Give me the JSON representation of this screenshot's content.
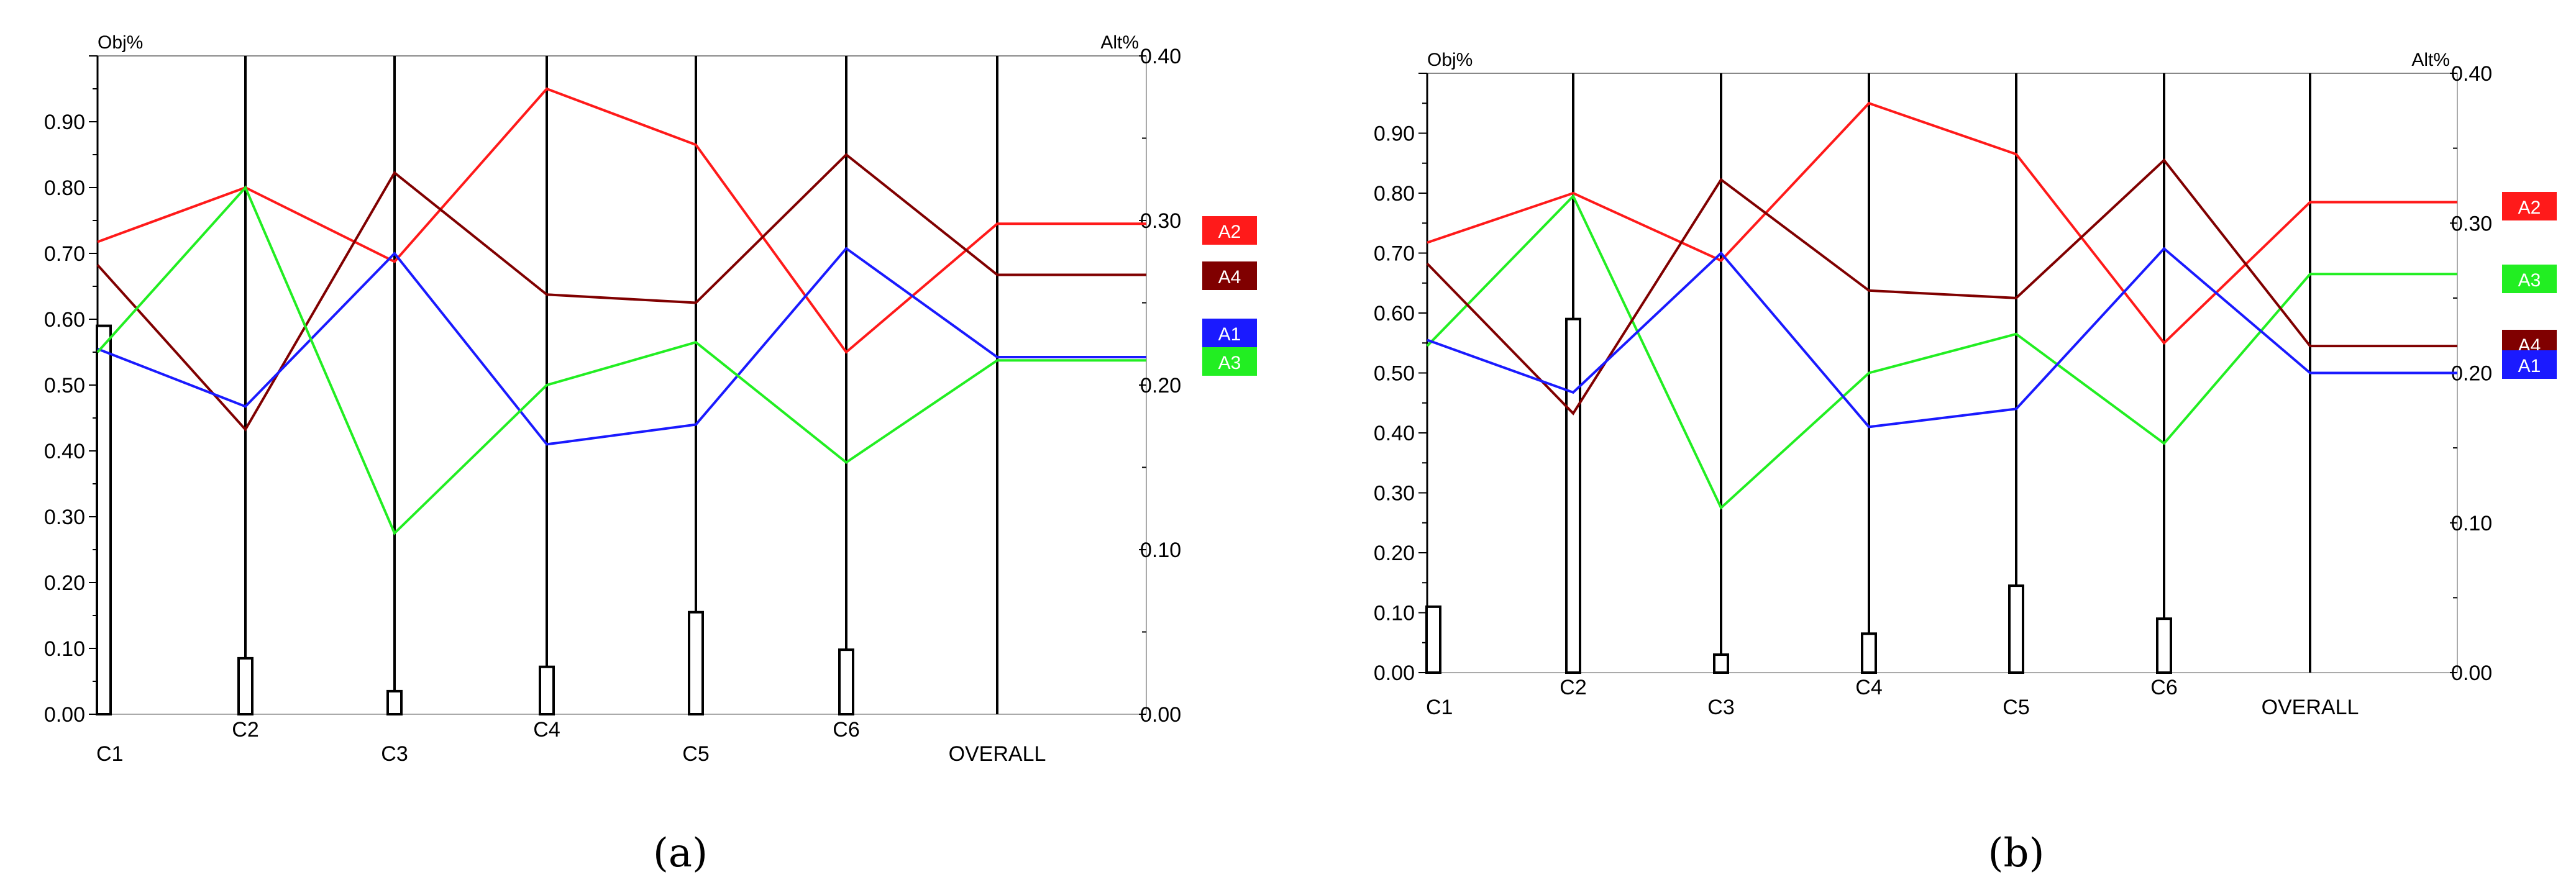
{
  "chart_data": [
    {
      "type": "line",
      "panel_label": "(a)",
      "left_axis_title": "Obj%",
      "right_axis_title": "Alt%",
      "categories": [
        "C1",
        "C2",
        "C3",
        "C4",
        "C5",
        "C6",
        "OVERALL"
      ],
      "left_ylim": [
        0,
        1.0
      ],
      "left_ticks": [
        "0.00",
        "0.10",
        "0.20",
        "0.30",
        "0.40",
        "0.50",
        "0.60",
        "0.70",
        "0.80",
        "0.90"
      ],
      "right_ylim": [
        0,
        0.4
      ],
      "right_ticks": [
        "0.00",
        "0.10",
        "0.20",
        "0.30",
        "0.40"
      ],
      "weights": [
        0.59,
        0.085,
        0.035,
        0.072,
        0.155,
        0.098
      ],
      "series": [
        {
          "name": "A2",
          "color": "#ff1a1a",
          "values": [
            0.287,
            0.32,
            0.275,
            0.38,
            0.346,
            0.22,
            0.298
          ]
        },
        {
          "name": "A4",
          "color": "#800000",
          "values": [
            0.273,
            0.173,
            0.329,
            0.255,
            0.25,
            0.34,
            0.267
          ]
        },
        {
          "name": "A1",
          "color": "#1a1aff",
          "values": [
            0.222,
            0.187,
            0.28,
            0.164,
            0.176,
            0.283,
            0.217
          ]
        },
        {
          "name": "A3",
          "color": "#22ee22",
          "values": [
            0.22,
            0.32,
            0.11,
            0.2,
            0.226,
            0.153,
            0.215
          ]
        }
      ],
      "legend_order": [
        "A2",
        "A4",
        "A1",
        "A3"
      ]
    },
    {
      "type": "line",
      "panel_label": "(b)",
      "left_axis_title": "Obj%",
      "right_axis_title": "Alt%",
      "categories": [
        "C1",
        "C2",
        "C3",
        "C4",
        "C5",
        "C6",
        "OVERALL"
      ],
      "left_ylim": [
        0,
        1.0
      ],
      "left_ticks": [
        "0.00",
        "0.10",
        "0.20",
        "0.30",
        "0.40",
        "0.50",
        "0.60",
        "0.70",
        "0.80",
        "0.90"
      ],
      "right_ylim": [
        0,
        0.4
      ],
      "right_ticks": [
        "0.00",
        "0.10",
        "0.20",
        "0.30",
        "0.40"
      ],
      "weights": [
        0.11,
        0.59,
        0.03,
        0.065,
        0.145,
        0.09
      ],
      "series": [
        {
          "name": "A2",
          "color": "#ff1a1a",
          "values": [
            0.287,
            0.32,
            0.275,
            0.38,
            0.346,
            0.22,
            0.314
          ]
        },
        {
          "name": "A3",
          "color": "#22ee22",
          "values": [
            0.218,
            0.318,
            0.11,
            0.2,
            0.226,
            0.153,
            0.266
          ]
        },
        {
          "name": "A4",
          "color": "#800000",
          "values": [
            0.273,
            0.173,
            0.329,
            0.255,
            0.25,
            0.342,
            0.218
          ]
        },
        {
          "name": "A1",
          "color": "#1a1aff",
          "values": [
            0.222,
            0.187,
            0.28,
            0.164,
            0.176,
            0.283,
            0.2
          ]
        }
      ],
      "legend_order": [
        "A2",
        "A3",
        "A4",
        "A1"
      ]
    }
  ]
}
